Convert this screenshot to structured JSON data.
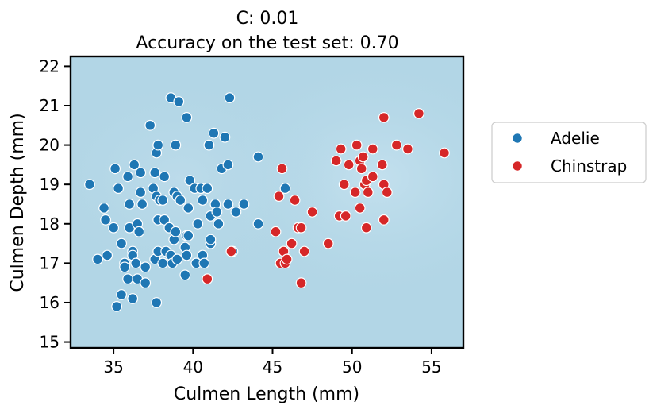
{
  "chart_data": {
    "type": "scatter",
    "title": "C: 0.01",
    "subtitle": "Accuracy on the test set: 0.70",
    "xlabel": "Culmen Length (mm)",
    "ylabel": "Culmen Depth (mm)",
    "xlim": [
      32.3,
      57.0
    ],
    "ylim": [
      14.85,
      22.25
    ],
    "xticks": [
      35,
      40,
      45,
      50,
      55
    ],
    "yticks": [
      15,
      16,
      17,
      18,
      19,
      20,
      21,
      22
    ],
    "grid": false,
    "background": "decision-function shading (light blue)",
    "legend": {
      "position": "right-outside",
      "entries": [
        "Adelie",
        "Chinstrap"
      ]
    },
    "colors": {
      "Adelie": "#1f77b4",
      "Chinstrap": "#d62728"
    },
    "series": [
      {
        "name": "Adelie",
        "points": [
          [
            33.5,
            19.0
          ],
          [
            34.0,
            17.1
          ],
          [
            34.4,
            18.4
          ],
          [
            34.5,
            18.1
          ],
          [
            34.6,
            17.2
          ],
          [
            35.0,
            17.9
          ],
          [
            35.1,
            19.4
          ],
          [
            35.2,
            15.9
          ],
          [
            35.3,
            18.9
          ],
          [
            35.5,
            16.2
          ],
          [
            35.5,
            17.5
          ],
          [
            35.7,
            17.0
          ],
          [
            35.7,
            16.9
          ],
          [
            35.9,
            19.2
          ],
          [
            35.9,
            16.6
          ],
          [
            36.0,
            17.9
          ],
          [
            36.0,
            18.5
          ],
          [
            36.2,
            17.3
          ],
          [
            36.2,
            17.2
          ],
          [
            36.2,
            16.1
          ],
          [
            36.3,
            19.5
          ],
          [
            36.4,
            17.0
          ],
          [
            36.5,
            16.6
          ],
          [
            36.5,
            18.0
          ],
          [
            36.6,
            17.8
          ],
          [
            36.7,
            18.8
          ],
          [
            36.7,
            19.3
          ],
          [
            36.8,
            18.5
          ],
          [
            37.0,
            16.5
          ],
          [
            37.0,
            16.9
          ],
          [
            37.3,
            20.5
          ],
          [
            37.5,
            18.9
          ],
          [
            37.6,
            19.3
          ],
          [
            37.6,
            17.1
          ],
          [
            37.7,
            18.7
          ],
          [
            37.7,
            19.8
          ],
          [
            37.7,
            16.0
          ],
          [
            37.8,
            20.0
          ],
          [
            37.8,
            17.3
          ],
          [
            37.8,
            18.1
          ],
          [
            37.9,
            18.6
          ],
          [
            38.1,
            17.0
          ],
          [
            38.1,
            18.6
          ],
          [
            38.2,
            18.1
          ],
          [
            38.2,
            19.2
          ],
          [
            38.3,
            17.3
          ],
          [
            38.5,
            17.9
          ],
          [
            38.6,
            17.2
          ],
          [
            38.6,
            21.2
          ],
          [
            38.7,
            17.0
          ],
          [
            38.8,
            17.6
          ],
          [
            38.8,
            18.8
          ],
          [
            38.9,
            17.8
          ],
          [
            38.9,
            20.0
          ],
          [
            39.0,
            17.1
          ],
          [
            39.0,
            18.7
          ],
          [
            39.1,
            21.1
          ],
          [
            39.2,
            18.6
          ],
          [
            39.5,
            16.7
          ],
          [
            39.5,
            17.4
          ],
          [
            39.6,
            17.7
          ],
          [
            39.6,
            20.7
          ],
          [
            39.6,
            17.2
          ],
          [
            39.7,
            18.4
          ],
          [
            39.7,
            17.7
          ],
          [
            39.8,
            19.1
          ],
          [
            40.1,
            18.9
          ],
          [
            40.2,
            17.0
          ],
          [
            40.3,
            18.0
          ],
          [
            40.5,
            18.9
          ],
          [
            40.6,
            17.2
          ],
          [
            40.6,
            18.6
          ],
          [
            40.7,
            17.0
          ],
          [
            40.9,
            18.9
          ],
          [
            41.0,
            20.0
          ],
          [
            41.1,
            17.5
          ],
          [
            41.1,
            18.2
          ],
          [
            41.1,
            17.6
          ],
          [
            41.3,
            20.3
          ],
          [
            41.4,
            18.5
          ],
          [
            41.5,
            18.3
          ],
          [
            41.6,
            18.0
          ],
          [
            41.8,
            19.4
          ],
          [
            42.0,
            20.2
          ],
          [
            42.2,
            18.5
          ],
          [
            42.2,
            19.5
          ],
          [
            42.3,
            21.2
          ],
          [
            42.5,
            17.3
          ],
          [
            42.7,
            18.3
          ],
          [
            43.2,
            18.5
          ],
          [
            44.1,
            19.7
          ],
          [
            44.1,
            18.0
          ],
          [
            45.8,
            18.9
          ]
        ]
      },
      {
        "name": "Chinstrap",
        "points": [
          [
            40.9,
            16.6
          ],
          [
            42.4,
            17.3
          ],
          [
            45.2,
            17.8
          ],
          [
            45.4,
            18.7
          ],
          [
            45.5,
            17.0
          ],
          [
            45.6,
            19.4
          ],
          [
            45.7,
            17.3
          ],
          [
            45.8,
            17.0
          ],
          [
            45.9,
            17.1
          ],
          [
            46.2,
            17.5
          ],
          [
            46.4,
            18.6
          ],
          [
            46.6,
            17.9
          ],
          [
            46.8,
            17.9
          ],
          [
            46.8,
            16.5
          ],
          [
            47.0,
            17.3
          ],
          [
            47.5,
            18.3
          ],
          [
            48.5,
            17.5
          ],
          [
            49.0,
            19.6
          ],
          [
            49.2,
            18.2
          ],
          [
            49.3,
            19.9
          ],
          [
            49.5,
            19.0
          ],
          [
            49.6,
            18.2
          ],
          [
            49.8,
            19.5
          ],
          [
            50.2,
            18.8
          ],
          [
            50.3,
            20.0
          ],
          [
            50.5,
            19.6
          ],
          [
            50.5,
            18.4
          ],
          [
            50.6,
            19.4
          ],
          [
            50.7,
            19.7
          ],
          [
            50.8,
            19.0
          ],
          [
            50.9,
            17.9
          ],
          [
            50.9,
            19.1
          ],
          [
            51.0,
            18.8
          ],
          [
            51.3,
            19.9
          ],
          [
            51.3,
            19.2
          ],
          [
            51.9,
            19.5
          ],
          [
            52.0,
            20.7
          ],
          [
            52.0,
            19.0
          ],
          [
            52.0,
            18.1
          ],
          [
            52.2,
            18.8
          ],
          [
            52.8,
            20.0
          ],
          [
            53.5,
            19.9
          ],
          [
            54.2,
            20.8
          ],
          [
            55.8,
            19.8
          ]
        ]
      }
    ]
  }
}
